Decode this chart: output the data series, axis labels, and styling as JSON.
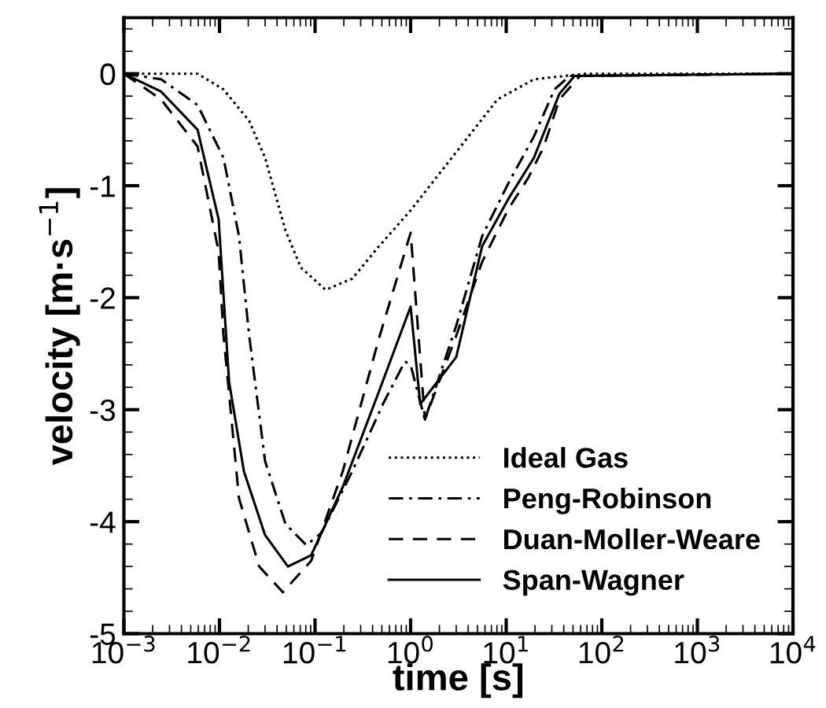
{
  "chart_data": {
    "type": "line",
    "xlabel": "time [s]",
    "ylabel": "velocity [m·s$^{−1}$]",
    "log": "x",
    "xlim": [
      0.001,
      10000
    ],
    "ylim": [
      -5,
      0.5
    ],
    "xticks": [
      {
        "value": 0.001,
        "label": "10$^{−3}$"
      },
      {
        "value": 0.01,
        "label": "10$^{−2}$"
      },
      {
        "value": 0.1,
        "label": "10$^{−1}$"
      },
      {
        "value": 1,
        "label": "10$^{0}$"
      },
      {
        "value": 10,
        "label": "10$^{1}$"
      },
      {
        "value": 100,
        "label": "10$^{2}$"
      },
      {
        "value": 1000,
        "label": "10$^{3}$"
      },
      {
        "value": 10000,
        "label": "10$^{4}$"
      }
    ],
    "yticks": [
      -5,
      -4,
      -3,
      -2,
      -1,
      0
    ],
    "grid": false,
    "legend": "bottom right",
    "series": [
      {
        "name": "Ideal Gas",
        "color": "#000000",
        "line_style": "dotted",
        "x": [
          0.001,
          0.0059,
          0.011,
          0.0204,
          0.03,
          0.049,
          0.071,
          0.129,
          0.245,
          0.457,
          1,
          3.0,
          8.1,
          19.5,
          68,
          10000
        ],
        "values": [
          0,
          0,
          -0.14,
          -0.42,
          -0.75,
          -1.4,
          -1.73,
          -1.93,
          -1.83,
          -1.55,
          -1.22,
          -0.7,
          -0.23,
          -0.05,
          0,
          0
        ]
      },
      {
        "name": "Peng-Robinson",
        "color": "#000000",
        "line_style": "dashdot",
        "x": [
          0.001,
          0.00245,
          0.0059,
          0.011,
          0.016,
          0.0204,
          0.03,
          0.049,
          0.081,
          0.117,
          0.245,
          0.52,
          0.87,
          1,
          1.41,
          3.0,
          5.6,
          10.5,
          19.5,
          32,
          46,
          10000
        ],
        "values": [
          0,
          -0.05,
          -0.28,
          -0.75,
          -1.45,
          -2.33,
          -3.46,
          -4.02,
          -4.21,
          -4.1,
          -3.55,
          -2.94,
          -2.57,
          -2.6,
          -3.09,
          -2.25,
          -1.45,
          -0.98,
          -0.56,
          -0.14,
          -0.02,
          0
        ]
      },
      {
        "name": "Duan-Moller-Weare",
        "color": "#000000",
        "line_style": "dashed",
        "x": [
          0.001,
          0.00245,
          0.0059,
          0.0098,
          0.011,
          0.016,
          0.026,
          0.046,
          0.091,
          0.195,
          0.46,
          1,
          1.41,
          3.0,
          5.6,
          10.5,
          17,
          24.5,
          36,
          59,
          10000
        ],
        "values": [
          0,
          -0.23,
          -0.65,
          -1.59,
          -2.33,
          -3.79,
          -4.4,
          -4.63,
          -4.35,
          -3.55,
          -2.38,
          -1.42,
          -3.09,
          -2.34,
          -1.68,
          -1.21,
          -0.93,
          -0.66,
          -0.23,
          -0.02,
          0
        ]
      },
      {
        "name": "Span-Wagner",
        "color": "#000000",
        "line_style": "solid",
        "x": [
          0.001,
          0.00245,
          0.0059,
          0.0098,
          0.0126,
          0.018,
          0.03,
          0.052,
          0.091,
          0.195,
          0.46,
          1,
          1.26,
          3.0,
          5.6,
          10.5,
          19.5,
          36,
          52,
          10000
        ],
        "values": [
          0,
          -0.16,
          -0.5,
          -1.3,
          -2.75,
          -3.55,
          -4.12,
          -4.4,
          -4.3,
          -3.69,
          -2.85,
          -2.08,
          -2.95,
          -2.53,
          -1.54,
          -1.12,
          -0.75,
          -0.18,
          -0.02,
          0
        ]
      }
    ]
  }
}
